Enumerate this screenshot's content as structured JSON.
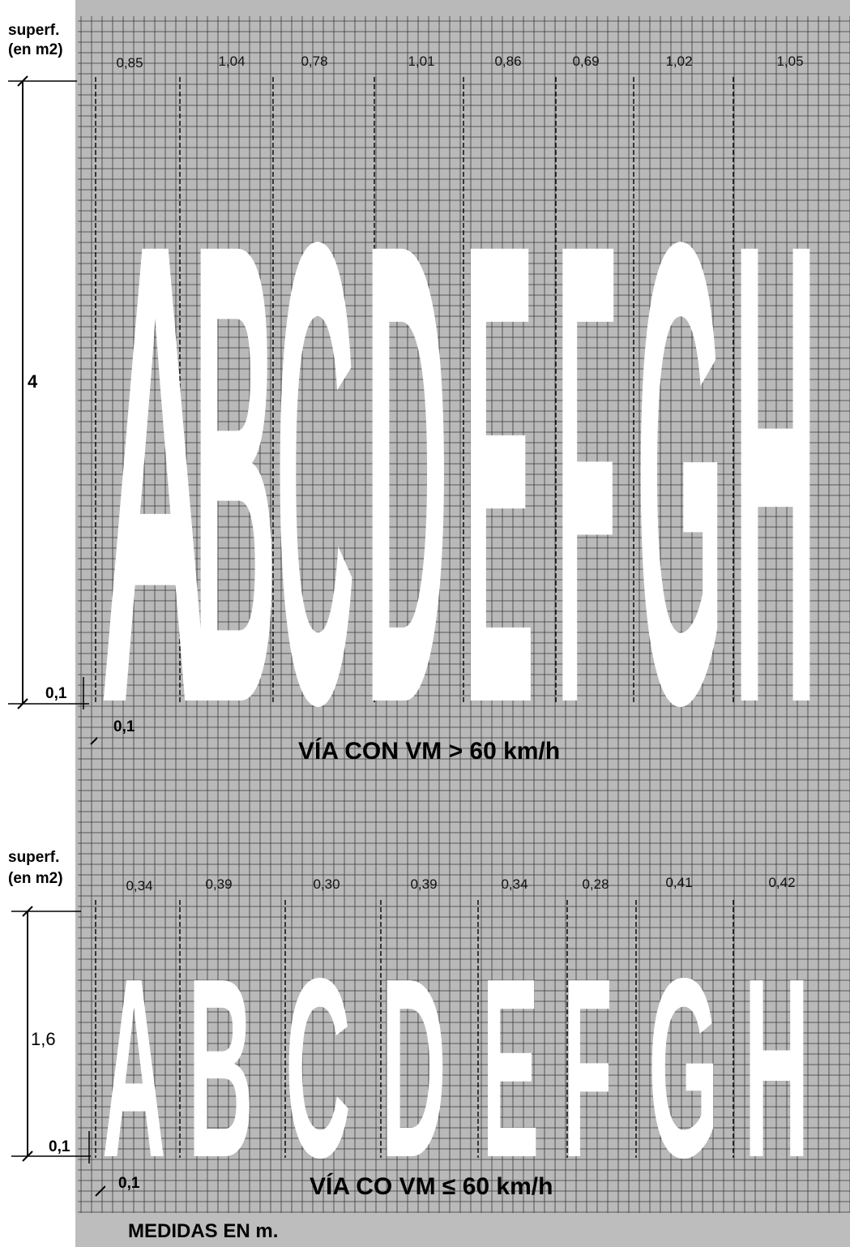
{
  "section_top": {
    "superf_label_line1": "superf.",
    "superf_label_line2": "(en m2)",
    "areas": [
      "0,85",
      "1,04",
      "0,78",
      "1,01",
      "0,86",
      "0,69",
      "1,02",
      "1,05"
    ],
    "letters": [
      "A",
      "B",
      "C",
      "D",
      "E",
      "F",
      "G",
      "H"
    ],
    "height_label": "4",
    "gap_label": "0,1",
    "spacing_label": "0,1",
    "caption": "VÍA CON VM > 60 km/h"
  },
  "section_bottom": {
    "superf_label_line1": "superf.",
    "superf_label_line2": "(en m2)",
    "areas": [
      "0,34",
      "0,39",
      "0,30",
      "0,39",
      "0,34",
      "0,28",
      "0,41",
      "0,42"
    ],
    "letters": [
      "A",
      "B",
      "C",
      "D",
      "E",
      "F",
      "G",
      "H"
    ],
    "height_label": "1,6",
    "gap_label": "0,1",
    "spacing_label": "0,1",
    "caption": "VÍA CO VM ≤ 60 km/h"
  },
  "footer": {
    "text": "MEDIDAS EN m."
  },
  "colors": {
    "grid_background": "#b9b9b9",
    "grid_line": "#3a3a3a",
    "letter_fill": "#ffffff",
    "footer_background": "#bdbdbd"
  }
}
